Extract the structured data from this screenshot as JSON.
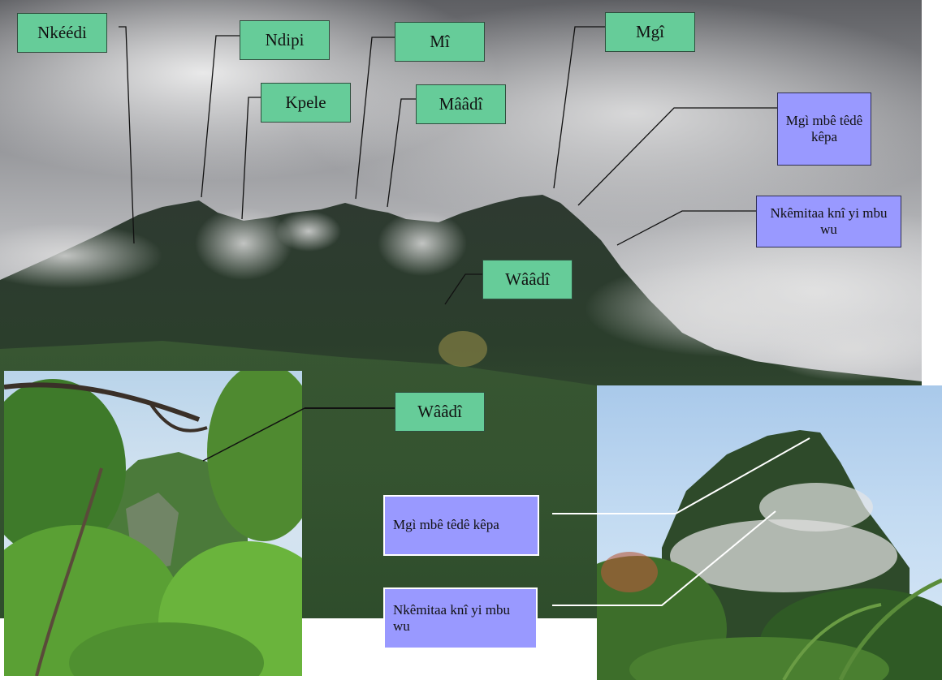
{
  "labels": {
    "nkeedi": "Nkéédi",
    "ndipi": "Ndipi",
    "mi": "Mî",
    "mgi": "Mgî",
    "kpele": "Kpele",
    "maadi": "Mââdî",
    "mgi_mbe_top": "Mgì mbê têdê kêpa",
    "nkemitaa_top": "Nkêmitaa knî yi mbu wu",
    "waadi_main": "Wââdî",
    "waadi_inset": "Wââdî",
    "mgi_mbe_inset": "Mgì mbê têdê kêpa",
    "nkemitaa_inset": "Nkêmitaa knî yi mbu wu"
  },
  "colors": {
    "green_label": "#66cc99",
    "violet_label": "#9999ff"
  }
}
